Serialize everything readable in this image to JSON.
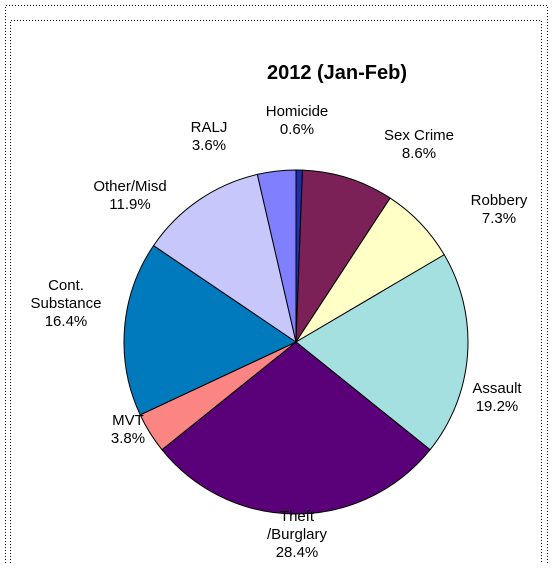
{
  "chart_data": {
    "type": "pie",
    "title": "2012 (Jan-Feb)",
    "legend": "none",
    "slices": [
      {
        "label_lines": [
          "Homicide",
          "0.6%"
        ],
        "value": 0.6,
        "color": "#1f2fa6"
      },
      {
        "label_lines": [
          "Sex Crime",
          "8.6%"
        ],
        "value": 8.6,
        "color": "#7b2157"
      },
      {
        "label_lines": [
          "Robbery",
          "7.3%"
        ],
        "value": 7.3,
        "color": "#ffffc6"
      },
      {
        "label_lines": [
          "Assault",
          "19.2%"
        ],
        "value": 19.2,
        "color": "#a5e0e0"
      },
      {
        "label_lines": [
          "Theft",
          "/Burglary",
          "28.4%"
        ],
        "value": 28.4,
        "color": "#5a0078"
      },
      {
        "label_lines": [
          "MVT",
          "3.8%"
        ],
        "value": 3.8,
        "color": "#fb8583"
      },
      {
        "label_lines": [
          "Cont.",
          "Substance",
          "16.4%"
        ],
        "value": 16.4,
        "color": "#0079bd"
      },
      {
        "label_lines": [
          "Other/Misd",
          "11.9%"
        ],
        "value": 11.9,
        "color": "#c7c7fb"
      },
      {
        "label_lines": [
          "RALJ",
          "3.6%"
        ],
        "value": 3.6,
        "color": "#8080ff"
      }
    ]
  }
}
